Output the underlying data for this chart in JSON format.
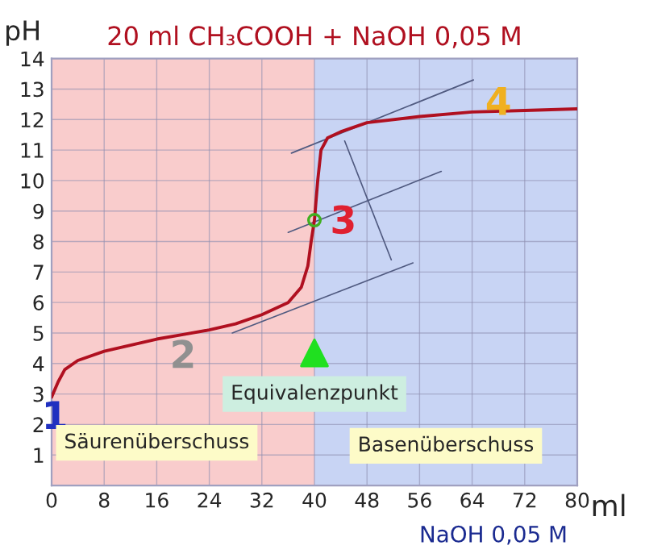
{
  "chart_data": {
    "type": "line",
    "title": "20 ml CH₃COOH + NaOH 0,05 M",
    "xlabel": "ml",
    "ylabel": "pH",
    "series": [
      {
        "color": "#b01020",
        "x": [
          0,
          1,
          2,
          4,
          8,
          12,
          16,
          20,
          24,
          28,
          32,
          36,
          38,
          39,
          39.5,
          40,
          40.5,
          41,
          42,
          44,
          48,
          56,
          64,
          72,
          80
        ],
        "values": [
          2.9,
          3.4,
          3.8,
          4.1,
          4.4,
          4.6,
          4.8,
          4.95,
          5.1,
          5.3,
          5.6,
          6.0,
          6.5,
          7.2,
          8.0,
          8.7,
          10.0,
          11.0,
          11.4,
          11.6,
          11.9,
          12.1,
          12.25,
          12.3,
          12.35
        ]
      },
      {
        "color": "#505a80",
        "x": [
          27.5,
          55
        ],
        "values": [
          5.0,
          7.3
        ]
      },
      {
        "color": "#505a80",
        "x": [
          36,
          59.3
        ],
        "values": [
          8.3,
          10.3
        ]
      },
      {
        "color": "#505a80",
        "x": [
          36.5,
          64.2
        ],
        "values": [
          10.9,
          13.3
        ]
      },
      {
        "color": "#505a80",
        "x": [
          44.6,
          51.7
        ],
        "values": [
          11.3,
          7.4
        ]
      },
      {
        "type": "scatter",
        "color": "#40b020",
        "x": [
          40
        ],
        "values": [
          8.7
        ]
      }
    ],
    "bands": [
      {
        "axis": "x",
        "from": 0,
        "to": 40,
        "color": "#f9cccc"
      },
      {
        "axis": "x",
        "from": 40,
        "to": 80,
        "color": "#c8d4f4"
      }
    ],
    "annotations": [
      {
        "text": "1",
        "x": 0.5,
        "y": 2.2
      },
      "2",
      "3",
      {
        "text": "4",
        "x": 68,
        "y": 12.5
      },
      {
        "text": "Equivalenzpunkt",
        "x": 40,
        "y": 3.0
      },
      "Säurenüberschuss",
      "Basenüberschuss",
      "NaOH 0,05 M"
    ],
    "xlim": [
      0,
      80
    ],
    "ylim": [
      0,
      14
    ],
    "xticks": [
      0,
      8,
      16,
      24,
      32,
      40,
      48,
      56,
      64,
      72,
      80
    ],
    "yticks": [
      1,
      2,
      3,
      4,
      5,
      6,
      7,
      8,
      9,
      10,
      11,
      12,
      13,
      14
    ],
    "grid": true,
    "legend": false
  }
}
